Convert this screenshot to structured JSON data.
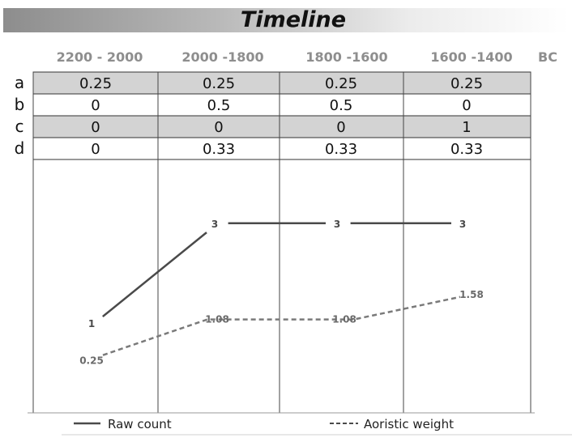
{
  "title": "Timeline",
  "colors": {
    "shaded_row": "#d3d3d3",
    "line": "#4a4a4a",
    "dashed_line": "#7a7a7a"
  },
  "chart_data": {
    "type": "line",
    "title": "Timeline",
    "x_unit": "BC",
    "categories": [
      "2200 - 2000",
      "2000 -1800",
      "1800 -1600",
      "1600 -1400"
    ],
    "table": {
      "row_labels": [
        "a",
        "b",
        "c",
        "d"
      ],
      "rows": [
        [
          "0.25",
          "0.25",
          "0.25",
          "0.25"
        ],
        [
          "0",
          "0.5",
          "0.5",
          "0"
        ],
        [
          "0",
          "0",
          "0",
          "1"
        ],
        [
          "0",
          "0.33",
          "0.33",
          "0.33"
        ]
      ],
      "shaded_rows": [
        true,
        false,
        true,
        false
      ]
    },
    "series": [
      {
        "name": "Raw count",
        "values": [
          1,
          3,
          3,
          3
        ],
        "labels": [
          "1",
          "3",
          "3",
          "3"
        ],
        "style": "solid"
      },
      {
        "name": "Aoristic weight",
        "values": [
          0.25,
          1.08,
          1.08,
          1.58
        ],
        "labels": [
          "0.25",
          "1.08",
          "1.08",
          "1.58"
        ],
        "style": "dashed"
      }
    ],
    "legend_position": "bottom",
    "grid": true
  }
}
